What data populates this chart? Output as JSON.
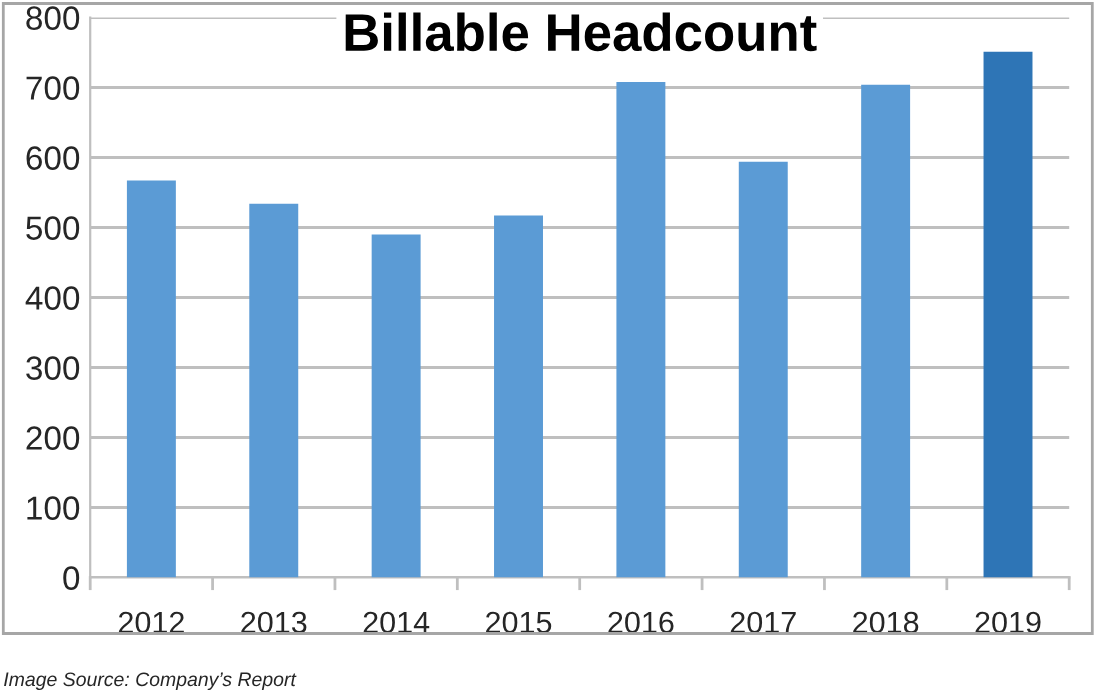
{
  "chart_data": {
    "type": "bar",
    "title": "Billable Headcount",
    "categories": [
      "2012",
      "2013",
      "2014",
      "2015",
      "2016",
      "2017",
      "2018",
      "2019"
    ],
    "values": [
      567,
      534,
      490,
      517,
      708,
      594,
      704,
      751
    ],
    "colors": [
      "#5b9bd5",
      "#5b9bd5",
      "#5b9bd5",
      "#5b9bd5",
      "#5b9bd5",
      "#5b9bd5",
      "#5b9bd5",
      "#2e75b6"
    ],
    "ylim": [
      0,
      800
    ],
    "yticks": [
      0,
      100,
      200,
      300,
      400,
      500,
      600,
      700,
      800
    ],
    "grid": "y",
    "legend": false,
    "annotations": [
      "Image Source: Company’s Report"
    ]
  }
}
